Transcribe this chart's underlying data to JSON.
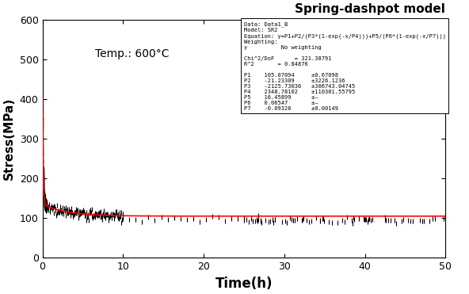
{
  "title": "Spring-dashpot model",
  "temp_label": "Temp.: 600°C",
  "xlabel": "Time(h)",
  "ylabel": "Stress(MPa)",
  "xlim": [
    0,
    50
  ],
  "ylim": [
    0,
    600
  ],
  "xticks": [
    0,
    10,
    20,
    30,
    40,
    50
  ],
  "yticks": [
    0,
    100,
    200,
    300,
    400,
    500,
    600
  ],
  "P1": 105.07094,
  "P2": -21.23309,
  "P3": -2125.73036,
  "P4": 2348.78102,
  "P5": 16.45899,
  "P6": 0.06547,
  "P7": -0.09326,
  "info_box_lines": [
    "Data: Data1_B",
    "Model: SR2",
    "Equation: y=P1+P2/(P3*(1-exp(-x/P4)))+P5/(P6*(1-exp(-x/P7)))",
    "Weighting:",
    "y          No weighting",
    "",
    "Chi^2/DoF      = 321.38791",
    "R^2       = 0.84876",
    "",
    "P1    105.07094     ±0.67098",
    "P2    -21.23309     ±3226.1236",
    "P3    -2125.73036   ±306743.04745",
    "P4    2348.78102    ±110301.55795",
    "P5    16.45899      ±—",
    "P6    0.06547       ±—",
    "P7    -0.09326      ±0.00149"
  ],
  "experimental_color": "#000000",
  "fit_color": "#ff0000",
  "bg_color": "#ffffff",
  "n_early_dense": 400,
  "n_mid": 150,
  "n_late_sparse": 80,
  "noise_early": 6,
  "noise_late": 4
}
